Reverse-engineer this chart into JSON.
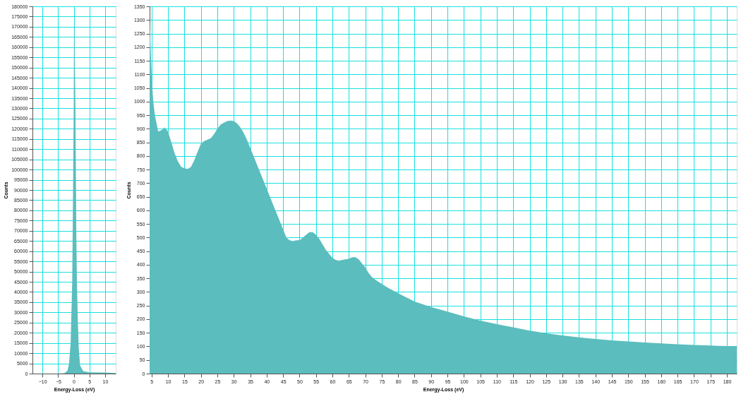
{
  "chart_data": [
    {
      "type": "area",
      "xlabel": "Energy-Loss (eV)",
      "ylabel": "Counts",
      "grid": true,
      "xlim": [
        -13.2,
        13.4
      ],
      "xticks": [
        -10,
        -5,
        0,
        5,
        10
      ],
      "ylim": [
        0,
        180000
      ],
      "yticks": [
        0,
        5000,
        10000,
        15000,
        20000,
        25000,
        30000,
        35000,
        40000,
        45000,
        50000,
        55000,
        60000,
        65000,
        70000,
        75000,
        80000,
        85000,
        90000,
        95000,
        100000,
        105000,
        110000,
        115000,
        120000,
        125000,
        130000,
        135000,
        140000,
        145000,
        150000,
        155000,
        160000,
        165000,
        170000,
        175000,
        180000
      ],
      "series": [
        {
          "color": "#5bbdbd",
          "x": [
            -13.2,
            -5,
            -3,
            -2,
            -1.5,
            -1,
            -0.5,
            -0.2,
            0,
            0.1,
            0.3,
            0.5,
            0.8,
            1,
            1.3,
            1.6,
            2,
            3,
            5,
            10,
            13.4
          ],
          "values": [
            0,
            0,
            200,
            1500,
            5000,
            15000,
            45000,
            95000,
            135000,
            178000,
            160000,
            133000,
            70000,
            45000,
            25000,
            12000,
            4000,
            1200,
            600,
            500,
            300
          ]
        }
      ]
    },
    {
      "type": "area",
      "xlabel": "Energy-Loss (eV)",
      "ylabel": "Counts",
      "grid": true,
      "xlim": [
        4.4,
        183
      ],
      "xticks": [
        5,
        10,
        15,
        20,
        25,
        30,
        35,
        40,
        45,
        50,
        55,
        60,
        65,
        70,
        75,
        80,
        85,
        90,
        95,
        100,
        105,
        110,
        115,
        120,
        125,
        130,
        135,
        140,
        145,
        150,
        155,
        160,
        165,
        170,
        175,
        180
      ],
      "ylim": [
        0,
        1350
      ],
      "yticks": [
        0,
        50,
        100,
        150,
        200,
        250,
        300,
        350,
        400,
        450,
        500,
        550,
        600,
        650,
        700,
        750,
        800,
        850,
        900,
        950,
        1000,
        1050,
        1100,
        1150,
        1200,
        1250,
        1300,
        1350
      ],
      "series": [
        {
          "color": "#5bbdbd",
          "x": [
            4.4,
            5,
            5.5,
            6,
            7,
            8,
            9,
            10,
            11,
            12,
            13,
            14,
            15,
            16,
            17,
            18,
            19,
            20,
            21,
            22,
            23,
            24,
            25,
            26,
            27,
            28,
            29,
            30,
            31,
            32,
            33,
            34,
            35,
            36,
            37,
            38,
            39,
            40,
            41,
            42,
            43,
            44,
            45,
            46,
            47,
            48,
            49,
            50,
            51,
            52,
            53,
            54,
            55,
            56,
            57,
            58,
            59,
            60,
            61,
            62,
            63,
            64,
            65,
            66,
            67,
            68,
            69,
            70,
            71,
            72,
            73,
            75,
            77,
            80,
            85,
            90,
            95,
            100,
            105,
            110,
            115,
            120,
            125,
            130,
            135,
            140,
            145,
            150,
            155,
            160,
            165,
            170,
            175,
            180,
            183
          ],
          "values": [
            1300,
            1100,
            1000,
            950,
            890,
            895,
            905,
            890,
            850,
            810,
            780,
            760,
            755,
            752,
            760,
            785,
            815,
            845,
            855,
            860,
            865,
            880,
            900,
            915,
            922,
            928,
            930,
            928,
            920,
            905,
            885,
            860,
            830,
            800,
            770,
            740,
            710,
            680,
            650,
            620,
            590,
            560,
            530,
            500,
            490,
            487,
            490,
            490,
            500,
            510,
            520,
            520,
            510,
            495,
            475,
            455,
            440,
            425,
            418,
            415,
            418,
            420,
            422,
            428,
            428,
            420,
            405,
            390,
            370,
            355,
            345,
            330,
            315,
            295,
            265,
            245,
            228,
            210,
            195,
            182,
            170,
            158,
            148,
            140,
            133,
            127,
            122,
            118,
            114,
            111,
            108,
            105,
            103,
            101,
            100
          ]
        }
      ]
    }
  ]
}
